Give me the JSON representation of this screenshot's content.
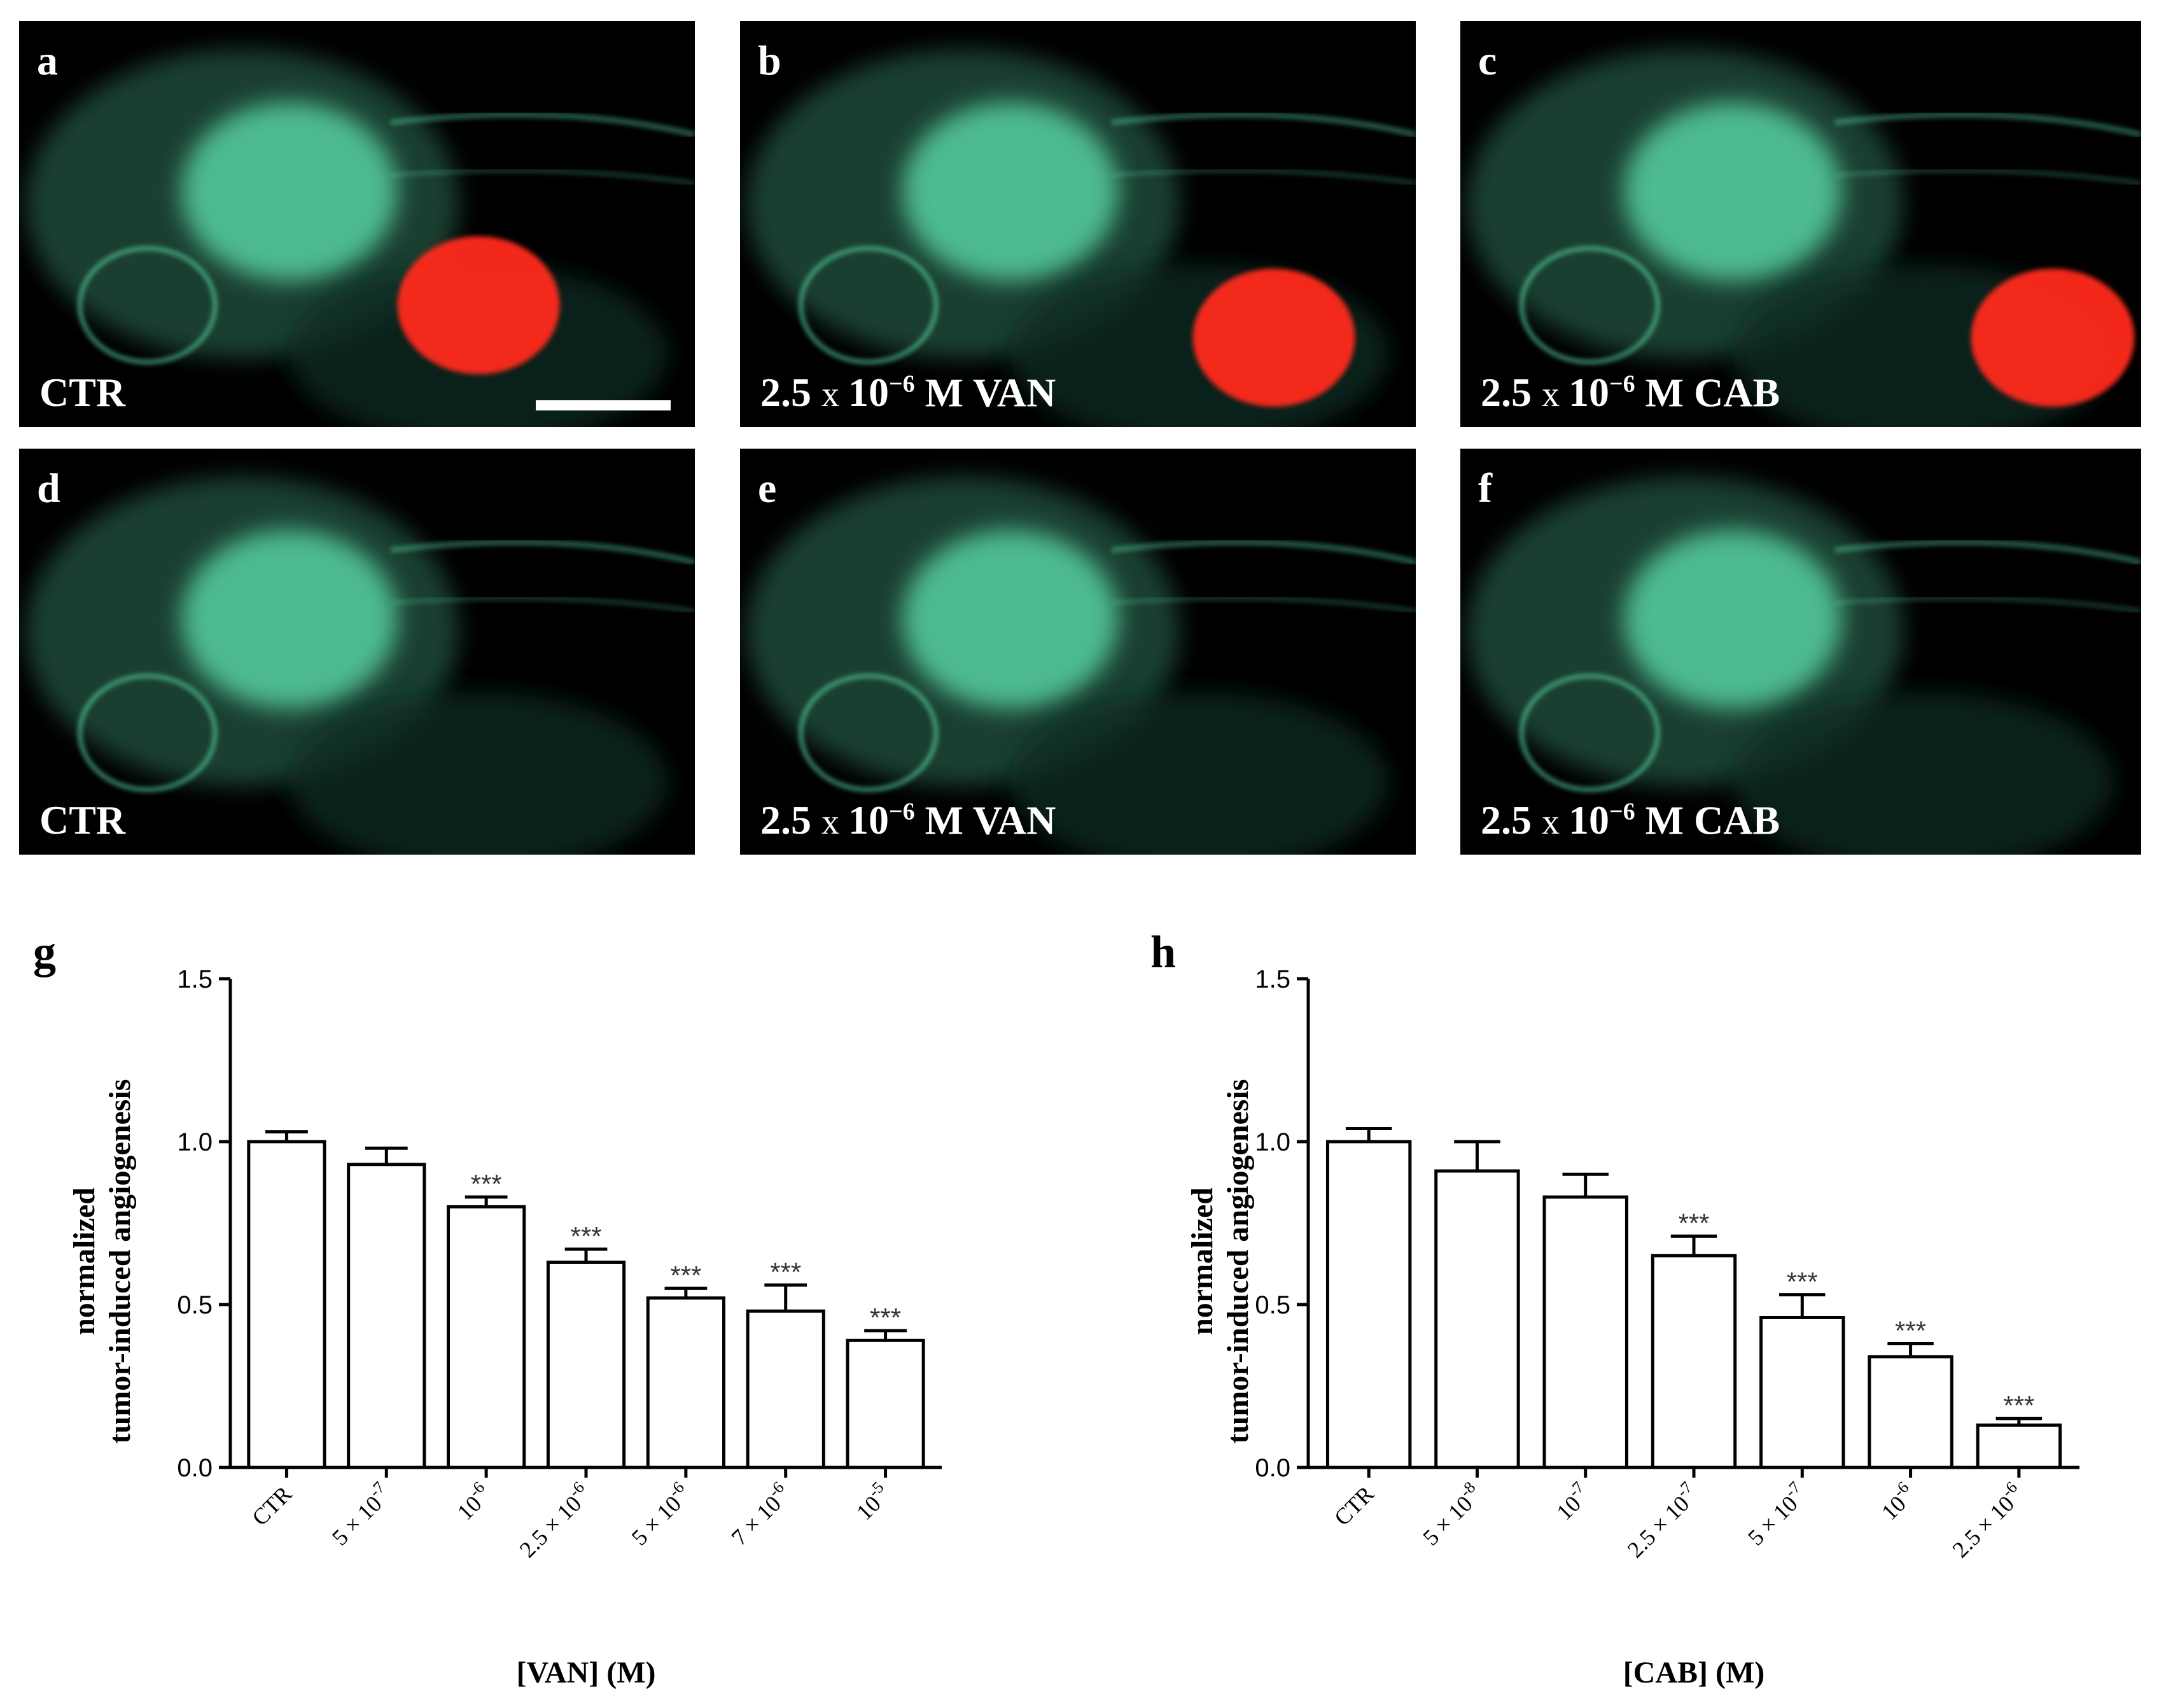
{
  "panels": [
    {
      "letter": "a",
      "label": "CTR",
      "conc": null,
      "drug": null,
      "tumor": true,
      "scale_bar": true
    },
    {
      "letter": "b",
      "label": "",
      "conc": "2.5 x 10",
      "exp": "−6",
      "drug": "M VAN",
      "tumor": true,
      "scale_bar": false
    },
    {
      "letter": "c",
      "label": "",
      "conc": "2.5 x 10",
      "exp": "−6",
      "drug": "M CAB",
      "tumor": true,
      "scale_bar": false
    },
    {
      "letter": "d",
      "label": "CTR",
      "conc": null,
      "drug": null,
      "tumor": false,
      "scale_bar": false
    },
    {
      "letter": "e",
      "label": "",
      "conc": "2.5 x 10",
      "exp": "−6",
      "drug": "M VAN",
      "tumor": false,
      "scale_bar": false
    },
    {
      "letter": "f",
      "label": "",
      "conc": "2.5 x 10",
      "exp": "−6",
      "drug": "M CAB",
      "tumor": false,
      "scale_bar": false
    }
  ],
  "colors": {
    "vessel": "#5fe3b0",
    "tumor": "#ff2a1a",
    "bar_fill": "#ffffff",
    "bar_stroke": "#000000"
  },
  "chart_data": [
    {
      "panel": "g",
      "type": "bar",
      "ylabel": [
        "normalized",
        "tumor-induced angiogenesis"
      ],
      "xlabel": "[VAN] (M)",
      "ylim": [
        0,
        1.5
      ],
      "yticks": [
        "0.0",
        "0.5",
        "1.0",
        "1.5"
      ],
      "ytick_values": [
        0,
        0.5,
        1.0,
        1.5
      ],
      "categories": [
        {
          "base": "CTR",
          "exp": ""
        },
        {
          "base": "5 × 10",
          "exp": "-7"
        },
        {
          "base": "10",
          "exp": "-6"
        },
        {
          "base": "2.5 × 10",
          "exp": "-6"
        },
        {
          "base": "5 × 10",
          "exp": "-6"
        },
        {
          "base": "7 × 10",
          "exp": "-6"
        },
        {
          "base": "10",
          "exp": "-5"
        }
      ],
      "values": [
        1.0,
        0.93,
        0.8,
        0.63,
        0.52,
        0.48,
        0.39
      ],
      "errors": [
        0.03,
        0.05,
        0.03,
        0.04,
        0.03,
        0.08,
        0.03
      ],
      "significance": [
        "",
        "",
        "***",
        "***",
        "***",
        "***",
        "***"
      ]
    },
    {
      "panel": "h",
      "type": "bar",
      "ylabel": [
        "normalized",
        "tumor-induced angiogenesis"
      ],
      "xlabel": "[CAB] (M)",
      "ylim": [
        0,
        1.5
      ],
      "yticks": [
        "0.0",
        "0.5",
        "1.0",
        "1.5"
      ],
      "ytick_values": [
        0,
        0.5,
        1.0,
        1.5
      ],
      "categories": [
        {
          "base": "CTR",
          "exp": ""
        },
        {
          "base": "5 × 10",
          "exp": "-8"
        },
        {
          "base": "10",
          "exp": "-7"
        },
        {
          "base": "2.5 × 10",
          "exp": "-7"
        },
        {
          "base": "5 × 10",
          "exp": "-7"
        },
        {
          "base": "10",
          "exp": "-6"
        },
        {
          "base": "2.5 × 10",
          "exp": "-6"
        }
      ],
      "values": [
        1.0,
        0.91,
        0.83,
        0.65,
        0.46,
        0.34,
        0.13
      ],
      "errors": [
        0.04,
        0.09,
        0.07,
        0.06,
        0.07,
        0.04,
        0.02
      ],
      "significance": [
        "",
        "",
        "",
        "***",
        "***",
        "***",
        "***"
      ]
    }
  ]
}
